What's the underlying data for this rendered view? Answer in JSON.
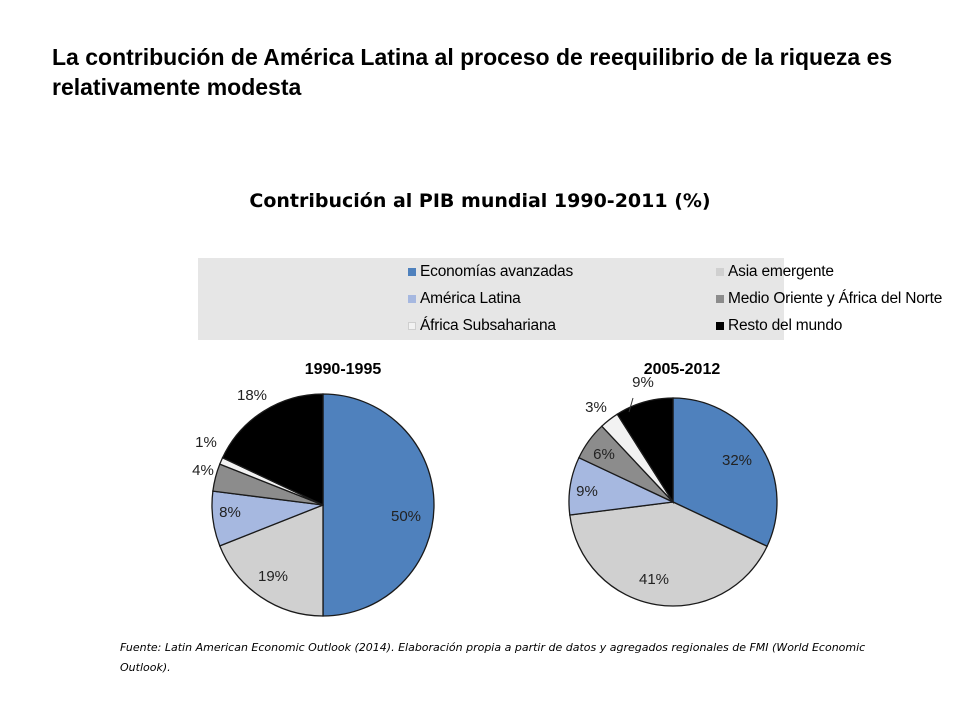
{
  "slide": {
    "title": "La contribución de América Latina al proceso de reequilibrio de la riqueza es relativamente modesta"
  },
  "chart_data": {
    "type": "pie",
    "title_bold": "Contribución al PIB mundial 1990-2011",
    "title_suffix": " (%)",
    "legend_placement": "top",
    "legend": [
      {
        "name": "Economías avanzadas",
        "color": "#4f81bd"
      },
      {
        "name": "Asia emergente",
        "color": "#d0d0d0"
      },
      {
        "name": "América Latina",
        "color": "#a6b8e0"
      },
      {
        "name": "Medio Oriente y África del Norte",
        "color": "#8c8c8c"
      },
      {
        "name": "África Subsahariana",
        "color": "#f2f2f2"
      },
      {
        "name": "Resto del mundo",
        "color": "#000000"
      }
    ],
    "pies": [
      {
        "title": "1990-1995",
        "values": [
          50,
          19,
          8,
          4,
          1,
          18
        ],
        "labels": [
          "50%",
          "19%",
          "8%",
          "4%",
          "1%",
          "18%"
        ]
      },
      {
        "title": "2005-2012",
        "values": [
          32,
          41,
          9,
          6,
          3,
          9
        ],
        "labels": [
          "32%",
          "41%",
          "9%",
          "6%",
          "3%",
          "9%"
        ]
      }
    ]
  },
  "source": {
    "text": "Fuente:  Latin American Economic Outlook (2014). Elaboración propia a partir de datos y agregados regionales de FMI (World Economic Outlook)."
  }
}
